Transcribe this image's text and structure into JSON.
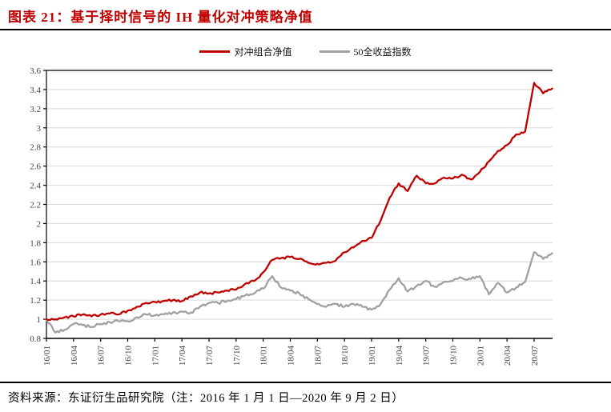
{
  "header": {
    "title": "图表 21：基于择时信号的 IH 量化对冲策略净值"
  },
  "footer": {
    "source_note": "资料来源：东证衍生品研究院（注：2016 年 1 月 1 日—2020 年 9 月 2 日）"
  },
  "chart_data": {
    "type": "line",
    "title": "基于择时信号的 IH 量化对冲策略净值",
    "xlabel": "",
    "ylabel": "",
    "ylim": [
      0.8,
      3.6
    ],
    "y_tick_step": 0.2,
    "grid": "horizontal",
    "gridline_color": "#D9D9D9",
    "axis_color": "#000000",
    "tick_label_color": "#404040",
    "legend_position": "top-center",
    "x_tick_labels": [
      "16/01",
      "16/04",
      "16/07",
      "16/10",
      "17/01",
      "17/04",
      "17/07",
      "17/10",
      "18/01",
      "18/04",
      "18/07",
      "18/10",
      "19/01",
      "19/04",
      "19/07",
      "19/10",
      "20/01",
      "20/04",
      "20/07"
    ],
    "x_months": [
      "16/01",
      "16/02",
      "16/03",
      "16/04",
      "16/05",
      "16/06",
      "16/07",
      "16/08",
      "16/09",
      "16/10",
      "16/11",
      "16/12",
      "17/01",
      "17/02",
      "17/03",
      "17/04",
      "17/05",
      "17/06",
      "17/07",
      "17/08",
      "17/09",
      "17/10",
      "17/11",
      "17/12",
      "18/01",
      "18/02",
      "18/03",
      "18/04",
      "18/05",
      "18/06",
      "18/07",
      "18/08",
      "18/09",
      "18/10",
      "18/11",
      "18/12",
      "19/01",
      "19/02",
      "19/03",
      "19/04",
      "19/05",
      "19/06",
      "19/07",
      "19/08",
      "19/09",
      "19/10",
      "19/11",
      "19/12",
      "20/01",
      "20/02",
      "20/03",
      "20/04",
      "20/05",
      "20/06",
      "20/07",
      "20/08",
      "20/09"
    ],
    "series": [
      {
        "name": "对冲组合净值",
        "color": "#C00000",
        "values": [
          1.0,
          1.0,
          1.02,
          1.03,
          1.05,
          1.03,
          1.05,
          1.06,
          1.05,
          1.09,
          1.13,
          1.17,
          1.18,
          1.19,
          1.2,
          1.19,
          1.24,
          1.28,
          1.27,
          1.28,
          1.3,
          1.31,
          1.37,
          1.4,
          1.49,
          1.62,
          1.64,
          1.65,
          1.63,
          1.59,
          1.58,
          1.59,
          1.61,
          1.7,
          1.75,
          1.82,
          1.85,
          2.03,
          2.27,
          2.42,
          2.34,
          2.5,
          2.42,
          2.42,
          2.48,
          2.47,
          2.51,
          2.46,
          2.54,
          2.65,
          2.76,
          2.82,
          2.93,
          2.96,
          3.47,
          3.36,
          3.41
        ]
      },
      {
        "name": "50全收益指数",
        "color": "#A0A0A0",
        "values": [
          1.0,
          0.86,
          0.89,
          0.95,
          0.94,
          0.92,
          0.95,
          0.97,
          0.98,
          0.98,
          1.02,
          1.05,
          1.04,
          1.05,
          1.07,
          1.08,
          1.07,
          1.13,
          1.17,
          1.17,
          1.19,
          1.21,
          1.25,
          1.27,
          1.32,
          1.45,
          1.33,
          1.3,
          1.27,
          1.21,
          1.16,
          1.13,
          1.16,
          1.13,
          1.16,
          1.13,
          1.1,
          1.16,
          1.31,
          1.43,
          1.29,
          1.35,
          1.4,
          1.34,
          1.39,
          1.4,
          1.43,
          1.42,
          1.45,
          1.26,
          1.38,
          1.28,
          1.33,
          1.39,
          1.7,
          1.63,
          1.69
        ]
      }
    ]
  }
}
